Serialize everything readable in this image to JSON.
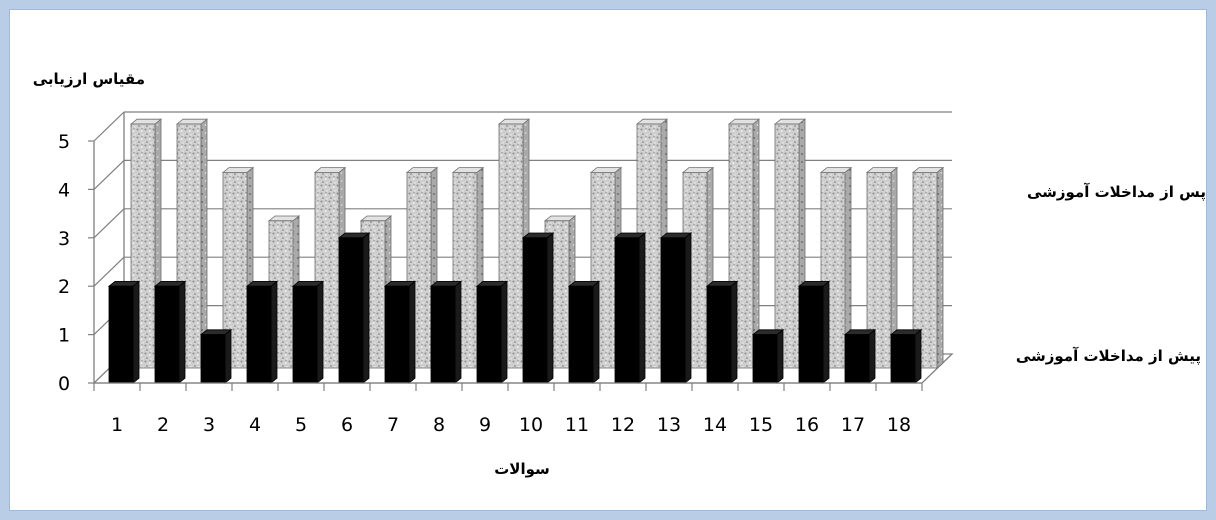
{
  "chart_data": {
    "type": "bar",
    "title": "",
    "ylabel": "مقیاس ارزیابی",
    "xlabel": "سوالات",
    "ylim": [
      0,
      5
    ],
    "yticks": [
      0,
      1,
      2,
      3,
      4,
      5
    ],
    "categories": [
      "1",
      "2",
      "3",
      "4",
      "5",
      "6",
      "7",
      "8",
      "9",
      "10",
      "11",
      "12",
      "13",
      "14",
      "15",
      "16",
      "17",
      "18"
    ],
    "series": [
      {
        "name": "پیش از مداخلات آموزشی",
        "color": "#000000",
        "values": [
          2,
          2,
          1,
          2,
          2,
          3,
          2,
          2,
          2,
          3,
          2,
          3,
          3,
          2,
          1,
          2,
          1,
          1
        ]
      },
      {
        "name": "پس از مداخلات آموزشی",
        "color": "#c8c8c8",
        "values": [
          5,
          5,
          4,
          3,
          4,
          3,
          4,
          4,
          5,
          3,
          4,
          5,
          4,
          5,
          5,
          4,
          4,
          4
        ]
      }
    ],
    "grid": true,
    "legend": "right",
    "style": "3d-clustered-depth"
  }
}
